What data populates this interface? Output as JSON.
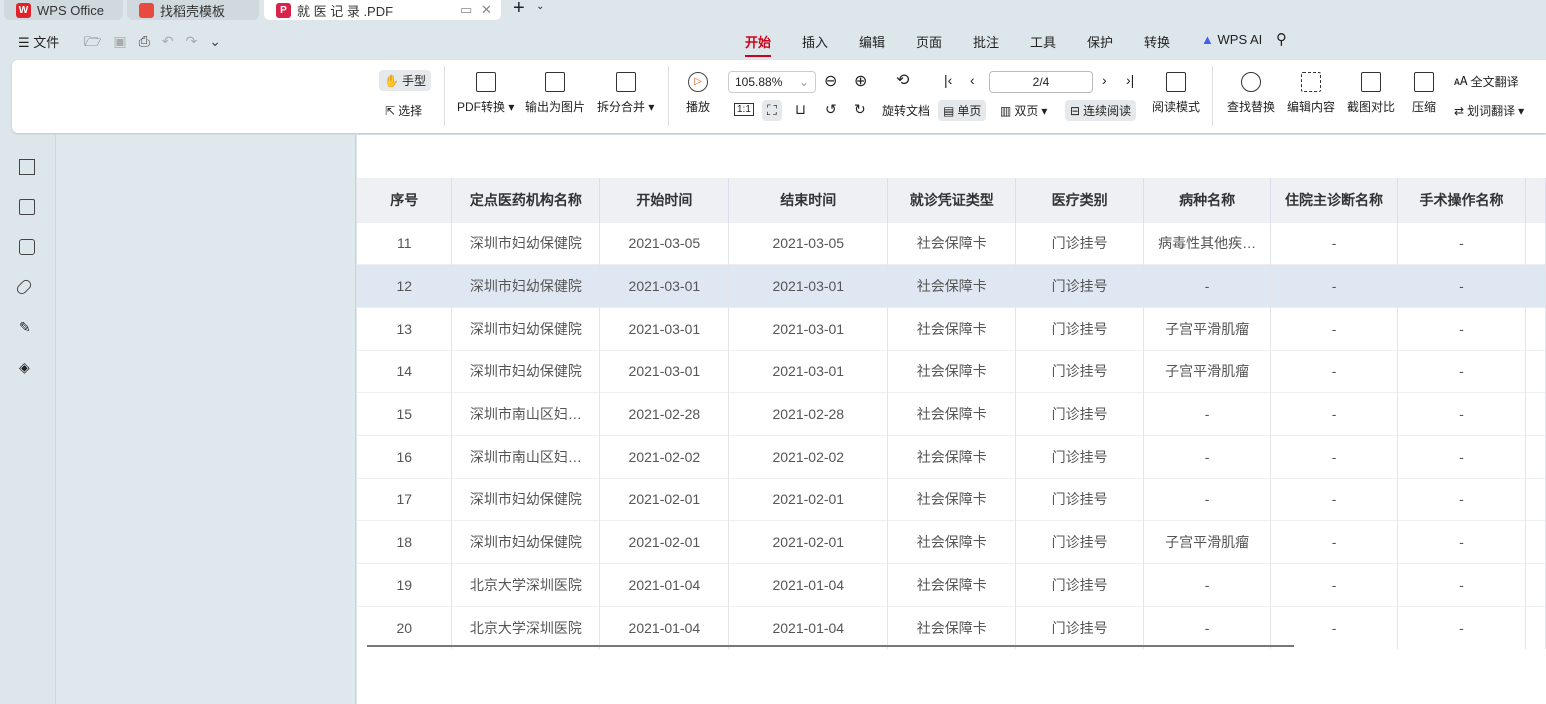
{
  "tabs": [
    {
      "label": "WPS Office"
    },
    {
      "label": "找稻壳模板"
    },
    {
      "label": "就 医 记 录 .PDF"
    }
  ],
  "menu": {
    "file": "文件",
    "items": [
      "开始",
      "插入",
      "编辑",
      "页面",
      "批注",
      "工具",
      "保护",
      "转换",
      "WPS AI"
    ],
    "active": "开始"
  },
  "ribbon": {
    "hand": "手型",
    "select": "选择",
    "pdf_convert": "PDF转换",
    "export_image": "输出为图片",
    "split_merge": "拆分合并",
    "play": "播放",
    "zoom": "105.88%",
    "rotate": "旋转文档",
    "single": "单页",
    "double": "双页",
    "continuous": "连续阅读",
    "page": "2/4",
    "read_mode": "阅读模式",
    "find_replace": "查找替换",
    "edit_content": "编辑内容",
    "screenshot_compare": "截图对比",
    "compress": "压缩",
    "full_translate": "全文翻译",
    "word_translate": "划词翻译"
  },
  "accent": "#d0021b",
  "table": {
    "headers": [
      "序号",
      "定点医药机构名称",
      "开始时间",
      "结束时间",
      "就诊凭证类型",
      "医疗类别",
      "病种名称",
      "住院主诊断名称",
      "手术操作名称"
    ],
    "rows": [
      [
        "11",
        "深圳市妇幼保健院",
        "2021-03-05",
        "2021-03-05",
        "社会保障卡",
        "门诊挂号",
        "病毒性其他疾…",
        "-",
        "-"
      ],
      [
        "12",
        "深圳市妇幼保健院",
        "2021-03-01",
        "2021-03-01",
        "社会保障卡",
        "门诊挂号",
        "-",
        "-",
        "-"
      ],
      [
        "13",
        "深圳市妇幼保健院",
        "2021-03-01",
        "2021-03-01",
        "社会保障卡",
        "门诊挂号",
        "子宫平滑肌瘤",
        "-",
        "-"
      ],
      [
        "14",
        "深圳市妇幼保健院",
        "2021-03-01",
        "2021-03-01",
        "社会保障卡",
        "门诊挂号",
        "子宫平滑肌瘤",
        "-",
        "-"
      ],
      [
        "15",
        "深圳市南山区妇…",
        "2021-02-28",
        "2021-02-28",
        "社会保障卡",
        "门诊挂号",
        "-",
        "-",
        "-"
      ],
      [
        "16",
        "深圳市南山区妇…",
        "2021-02-02",
        "2021-02-02",
        "社会保障卡",
        "门诊挂号",
        "-",
        "-",
        "-"
      ],
      [
        "17",
        "深圳市妇幼保健院",
        "2021-02-01",
        "2021-02-01",
        "社会保障卡",
        "门诊挂号",
        "-",
        "-",
        "-"
      ],
      [
        "18",
        "深圳市妇幼保健院",
        "2021-02-01",
        "2021-02-01",
        "社会保障卡",
        "门诊挂号",
        "子宫平滑肌瘤",
        "-",
        "-"
      ],
      [
        "19",
        "北京大学深圳医院",
        "2021-01-04",
        "2021-01-04",
        "社会保障卡",
        "门诊挂号",
        "-",
        "-",
        "-"
      ],
      [
        "20",
        "北京大学深圳医院",
        "2021-01-04",
        "2021-01-04",
        "社会保障卡",
        "门诊挂号",
        "-",
        "-",
        "-"
      ]
    ]
  }
}
